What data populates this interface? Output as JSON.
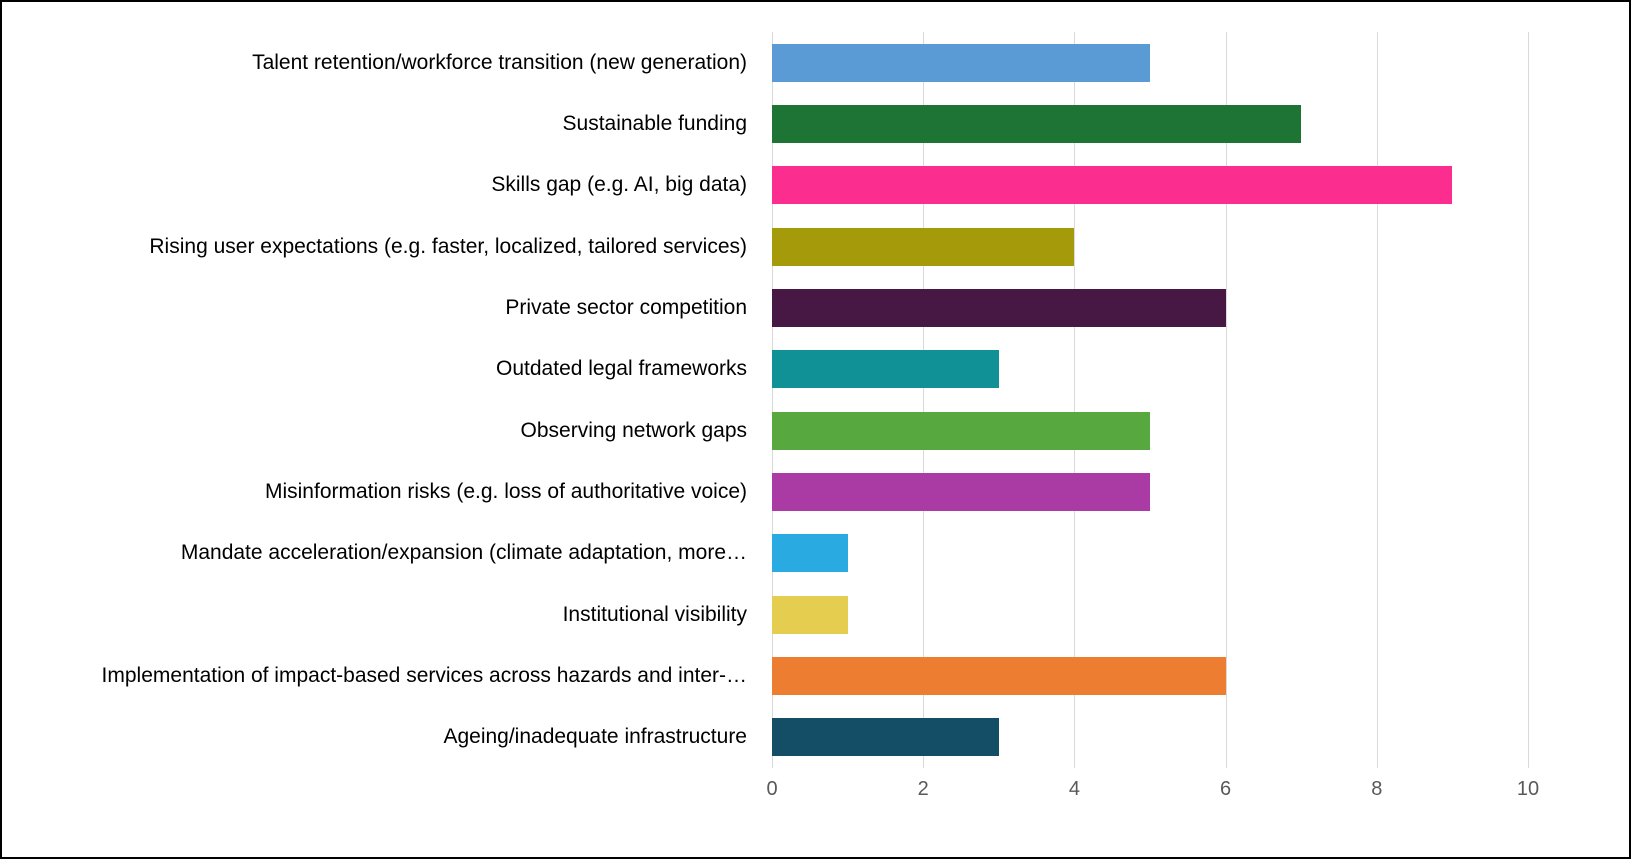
{
  "chart_data": {
    "type": "bar",
    "orientation": "horizontal",
    "title": "",
    "xlabel": "",
    "ylabel": "",
    "xlim": [
      0,
      10
    ],
    "x_ticks": [
      0,
      2,
      4,
      6,
      8,
      10
    ],
    "grid": "vertical",
    "legend": "none",
    "gridline_color": "#d9d9d9",
    "axis_text_color": "#595959",
    "categories": [
      "Talent retention/workforce transition (new generation)",
      "Sustainable funding",
      "Skills gap (e.g. AI, big data)",
      "Rising user expectations (e.g. faster, localized, tailored services)",
      "Private sector competition",
      "Outdated legal frameworks",
      "Observing network gaps",
      "Misinformation risks (e.g. loss of authoritative voice)",
      "Mandate acceleration/expansion (climate adaptation, more…",
      "Institutional visibility",
      "Implementation of impact-based services across hazards and inter-…",
      "Ageing/inadequate infrastructure"
    ],
    "values": [
      5,
      7,
      9,
      4,
      6,
      3,
      5,
      5,
      1,
      1,
      6,
      3
    ],
    "colors": [
      "#5b9bd5",
      "#1e7434",
      "#fb2e8f",
      "#a59b0a",
      "#471844",
      "#0f9195",
      "#57a83e",
      "#aa3ba5",
      "#29abe2",
      "#e4cd4f",
      "#ed7d31",
      "#144e66"
    ]
  }
}
